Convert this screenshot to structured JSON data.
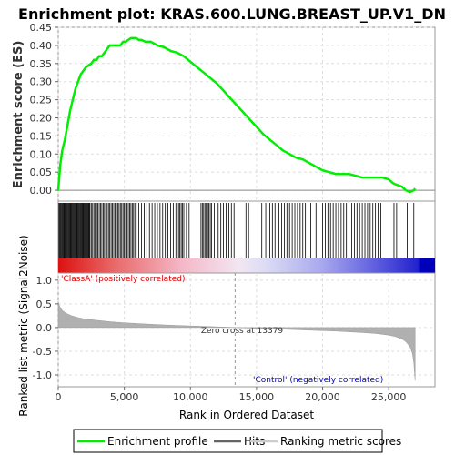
{
  "chart_data": {
    "type": "line",
    "title": "Enrichment plot: KRAS.600.LUNG.BREAST_UP.V1_DN",
    "top_panel": {
      "ylabel": "Enrichment score (ES)",
      "ylim": [
        -0.03,
        0.45
      ],
      "yticks": [
        "0.45",
        "0.40",
        "0.35",
        "0.30",
        "0.25",
        "0.20",
        "0.15",
        "0.10",
        "0.05",
        "0.00"
      ],
      "ytick_values": [
        0.45,
        0.4,
        0.35,
        0.3,
        0.25,
        0.2,
        0.15,
        0.1,
        0.05,
        0.0
      ],
      "grid": true,
      "series": [
        {
          "name": "Enrichment profile",
          "color": "#00ee00",
          "x": [
            0,
            150,
            300,
            500,
            700,
            900,
            1100,
            1300,
            1500,
            1700,
            1900,
            2100,
            2300,
            2500,
            2700,
            2900,
            3100,
            3300,
            3500,
            3700,
            3900,
            4100,
            4300,
            4500,
            4700,
            4900,
            5100,
            5300,
            5500,
            5700,
            5900,
            6100,
            6300,
            6600,
            7000,
            7500,
            8000,
            8500,
            9000,
            9500,
            10000,
            10500,
            11000,
            11500,
            12000,
            12500,
            13000,
            13500,
            14000,
            14500,
            15000,
            15500,
            16000,
            16500,
            17000,
            17500,
            18000,
            18500,
            19000,
            19500,
            20000,
            20500,
            21000,
            21500,
            22000,
            22500,
            23000,
            23500,
            24000,
            24500,
            25000,
            25300,
            25600,
            26000,
            26300,
            26600,
            26900,
            27000
          ],
          "y": [
            0.0,
            0.07,
            0.11,
            0.14,
            0.18,
            0.22,
            0.25,
            0.28,
            0.3,
            0.32,
            0.33,
            0.34,
            0.345,
            0.35,
            0.36,
            0.36,
            0.37,
            0.37,
            0.38,
            0.39,
            0.4,
            0.4,
            0.4,
            0.4,
            0.4,
            0.41,
            0.41,
            0.415,
            0.42,
            0.42,
            0.42,
            0.415,
            0.415,
            0.41,
            0.41,
            0.4,
            0.395,
            0.385,
            0.38,
            0.37,
            0.355,
            0.34,
            0.325,
            0.31,
            0.295,
            0.275,
            0.255,
            0.235,
            0.215,
            0.195,
            0.175,
            0.155,
            0.14,
            0.125,
            0.11,
            0.1,
            0.09,
            0.085,
            0.075,
            0.065,
            0.055,
            0.05,
            0.045,
            0.045,
            0.045,
            0.04,
            0.035,
            0.035,
            0.035,
            0.035,
            0.03,
            0.02,
            0.015,
            0.01,
            0.0,
            -0.005,
            0.0,
            0.005
          ]
        }
      ]
    },
    "hits_panel": {
      "hit_ranks": [
        60,
        120,
        180,
        240,
        300,
        360,
        420,
        480,
        540,
        600,
        660,
        720,
        780,
        840,
        900,
        960,
        1020,
        1080,
        1140,
        1200,
        1260,
        1320,
        1380,
        1440,
        1500,
        1560,
        1620,
        1680,
        1740,
        1800,
        1860,
        1920,
        1980,
        2040,
        2100,
        2160,
        2220,
        2280,
        2340,
        2400,
        2500,
        2600,
        2700,
        2800,
        2900,
        3000,
        3100,
        3200,
        3300,
        3400,
        3500,
        3600,
        3700,
        3800,
        3900,
        4000,
        4100,
        4200,
        4300,
        4400,
        4500,
        4600,
        4700,
        4800,
        4900,
        5000,
        5100,
        5200,
        5300,
        5400,
        5500,
        5600,
        5700,
        5800,
        5900,
        6100,
        6300,
        6500,
        6700,
        6900,
        7100,
        7300,
        7500,
        7700,
        7900,
        8100,
        8300,
        8500,
        8700,
        8900,
        9100,
        9200,
        9300,
        9400,
        9500,
        9700,
        9900,
        10800,
        10900,
        11000,
        11100,
        11200,
        11300,
        11400,
        11500,
        11600,
        11800,
        12100,
        12300,
        12500,
        12700,
        12900,
        13100,
        13300,
        14200,
        14400,
        15400,
        15700,
        16000,
        16200,
        16400,
        16700,
        16900,
        17100,
        17300,
        17500,
        17700,
        17900,
        18100,
        18300,
        18500,
        18700,
        18900,
        19100,
        19500,
        20000,
        20200,
        20400,
        20600,
        20800,
        21000,
        21200,
        21400,
        21600,
        21800,
        22000,
        22200,
        22400,
        22600,
        22800,
        23000,
        23200,
        23400,
        23600,
        23800,
        24000,
        24200,
        24400,
        25400,
        25600,
        26400,
        26900
      ]
    },
    "rank_panel": {
      "ylabel": "Ranked list metric (Signal2Noise)",
      "xlabel": "Rank in Ordered Dataset",
      "ylim": [
        -1.25,
        1.15
      ],
      "yticks": [
        "1.0",
        "0.5",
        "0.0",
        "-0.5",
        "-1.0"
      ],
      "ytick_values": [
        1.0,
        0.5,
        0.0,
        -0.5,
        -1.0
      ],
      "xlim": [
        0,
        28500
      ],
      "xticks": [
        "0",
        "5,000",
        "10,000",
        "15,000",
        "20,000",
        "25,000"
      ],
      "xtick_values": [
        0,
        5000,
        10000,
        15000,
        20000,
        25000
      ],
      "x": [
        0,
        100,
        300,
        600,
        1000,
        1500,
        2000,
        3000,
        4000,
        5000,
        6000,
        7000,
        8000,
        9000,
        10000,
        11000,
        12000,
        13000,
        13379,
        14000,
        15000,
        16000,
        17000,
        18000,
        19000,
        20000,
        21000,
        22000,
        23000,
        24000,
        25000,
        25500,
        26000,
        26300,
        26600,
        26800,
        26900,
        27000
      ],
      "values": [
        0.55,
        0.45,
        0.36,
        0.3,
        0.25,
        0.21,
        0.18,
        0.15,
        0.12,
        0.1,
        0.085,
        0.07,
        0.055,
        0.045,
        0.035,
        0.025,
        0.015,
        0.005,
        0.0,
        -0.005,
        -0.015,
        -0.025,
        -0.035,
        -0.045,
        -0.055,
        -0.065,
        -0.075,
        -0.09,
        -0.105,
        -0.125,
        -0.16,
        -0.19,
        -0.24,
        -0.3,
        -0.4,
        -0.55,
        -0.75,
        -1.12
      ],
      "zero_cross": 13379,
      "annotations": {
        "classA": "'ClassA' (positively correlated)",
        "zero_cross": "Zero cross at 13379",
        "control": "'Control' (negatively correlated)"
      }
    },
    "legend": {
      "placement": "bottom",
      "items": [
        {
          "label": "Enrichment profile",
          "color": "#00ee00"
        },
        {
          "label": "Hits",
          "color": "#666666"
        },
        {
          "label": "Ranking metric scores",
          "color": "#cccccc"
        }
      ]
    },
    "colors": {
      "profile": "#00ee00",
      "hit": "#000000",
      "classA_text": "#dd0000",
      "control_text": "#0000cc",
      "rank_fill": "#b0b0b0",
      "grid": "#dddddd"
    }
  }
}
